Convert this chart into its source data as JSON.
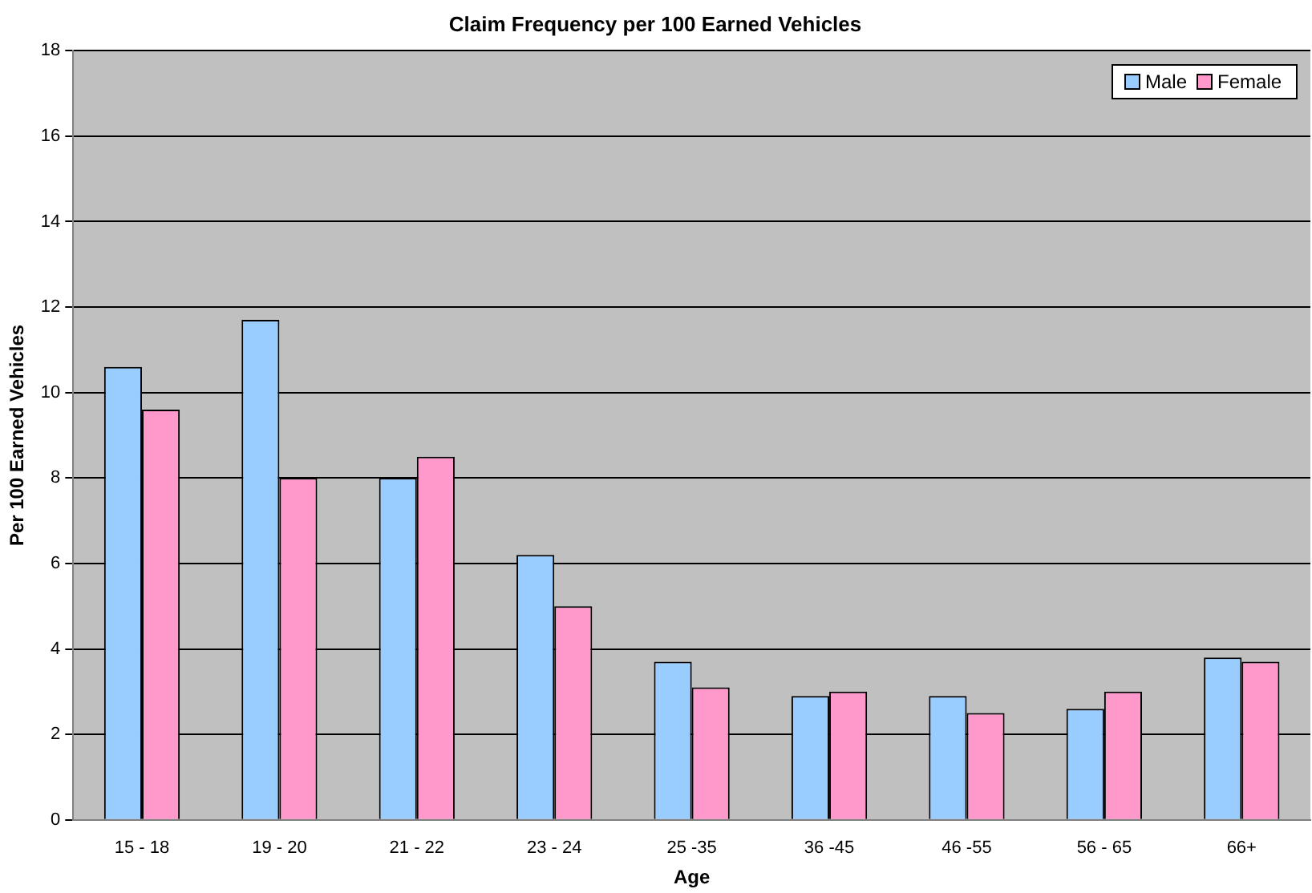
{
  "chart_data": {
    "type": "bar",
    "title": "Claim Frequency per 100 Earned Vehicles",
    "xlabel": "Age",
    "ylabel": "Per 100 Earned Vehicles",
    "categories": [
      "15 - 18",
      "19 - 20",
      "21 - 22",
      "23 - 24",
      "25 -35",
      "36 -45",
      "46 -55",
      "56 - 65",
      "66+"
    ],
    "series": [
      {
        "name": "Male",
        "color": "#99ccff",
        "values": [
          10.6,
          11.7,
          8.0,
          6.2,
          3.7,
          2.9,
          2.9,
          2.6,
          3.8
        ]
      },
      {
        "name": "Female",
        "color": "#ff99cc",
        "values": [
          9.6,
          8.0,
          8.5,
          5.0,
          3.1,
          3.0,
          2.5,
          3.0,
          3.7
        ]
      }
    ],
    "ylim": [
      0,
      18
    ],
    "yticks": [
      0,
      2,
      4,
      6,
      8,
      10,
      12,
      14,
      16,
      18
    ],
    "grid": "y",
    "legend": "top right"
  }
}
